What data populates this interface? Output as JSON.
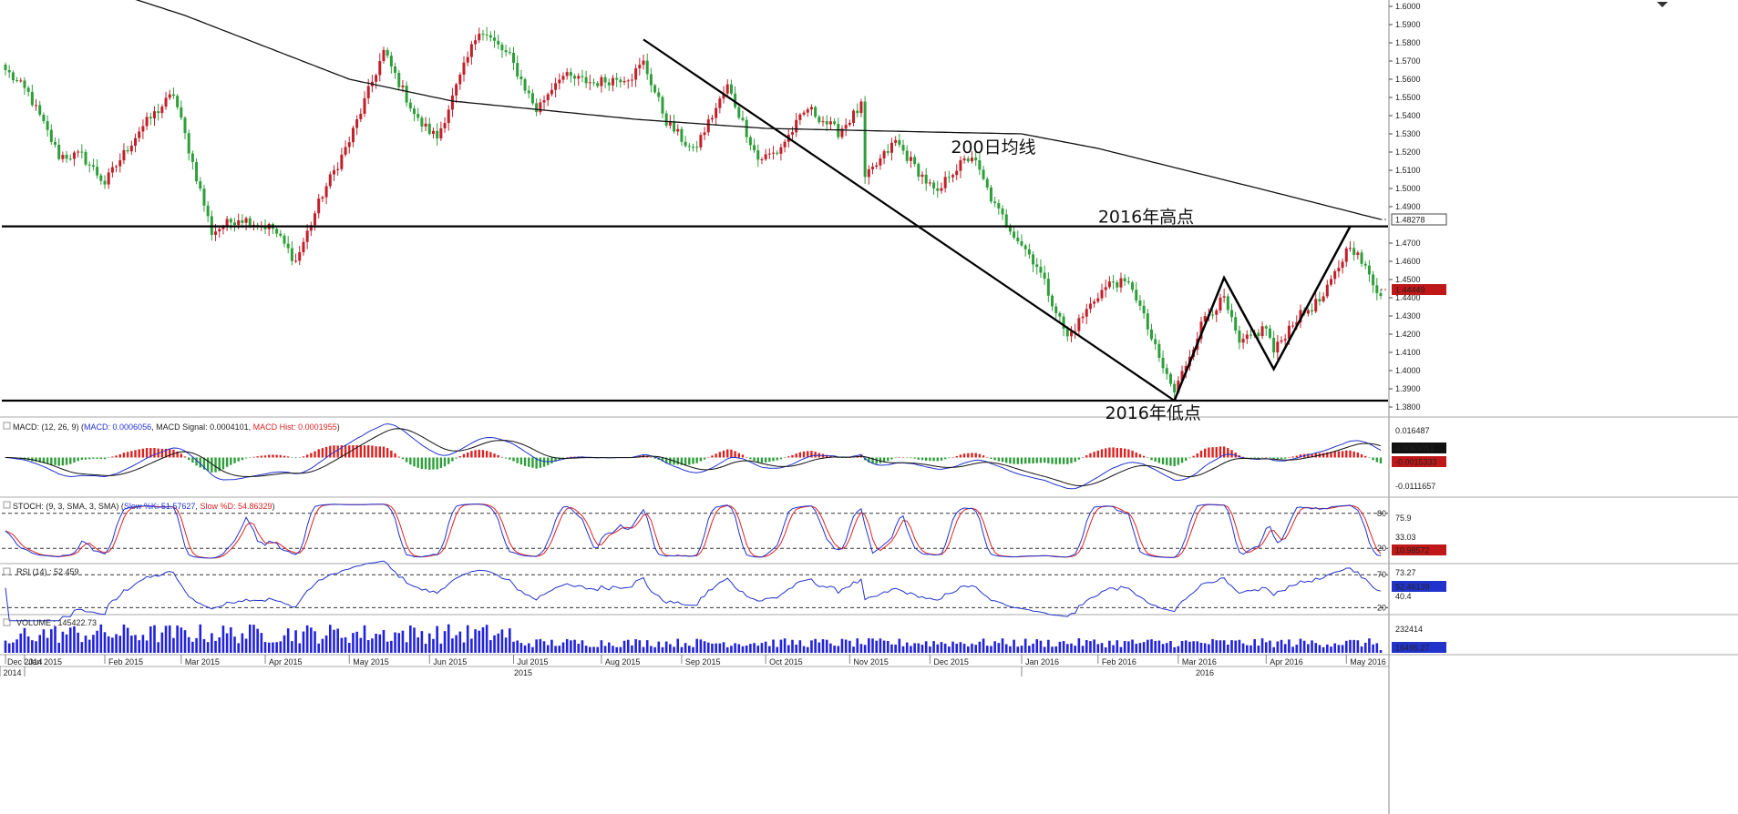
{
  "colors": {
    "up": "#c0202a",
    "down": "#2e9e3a",
    "ma": "#111111",
    "macd": "#2233cc",
    "signal": "#111111",
    "k": "#2233cc",
    "d": "#dd2222",
    "rsi": "#2233cc",
    "volume": "#2222dd",
    "badge_price": "#c01818",
    "badge_dark": "#111111",
    "badge_blue": "#2233cc"
  },
  "chart_data": {
    "type": "candlestick",
    "start_date": "2014-12-26",
    "interval": "1 trading day",
    "price_axis": {
      "ylim": [
        1.375,
        1.6035
      ],
      "ticks": [
        "1.3800",
        "1.3900",
        "1.4000",
        "1.4100",
        "1.4200",
        "1.4300",
        "1.4400",
        "1.4500",
        "1.4600",
        "1.4700",
        "1.4900",
        "1.5000",
        "1.5100",
        "1.5200",
        "1.5300",
        "1.5400",
        "1.5500",
        "1.5600",
        "1.5700",
        "1.5800",
        "1.5900",
        "1.6000"
      ]
    },
    "close_anchors": [
      {
        "date": "2014-12-26",
        "close": 1.565
      },
      {
        "date": "2015-01-05",
        "close": 1.552
      },
      {
        "date": "2015-01-15",
        "close": 1.518
      },
      {
        "date": "2015-01-23",
        "close": 1.518
      },
      {
        "date": "2015-02-02",
        "close": 1.503
      },
      {
        "date": "2015-02-13",
        "close": 1.532
      },
      {
        "date": "2015-02-26",
        "close": 1.552
      },
      {
        "date": "2015-03-12",
        "close": 1.476
      },
      {
        "date": "2015-03-23",
        "close": 1.484
      },
      {
        "date": "2015-04-03",
        "close": 1.478
      },
      {
        "date": "2015-04-13",
        "close": 1.46
      },
      {
        "date": "2015-04-22",
        "close": 1.497
      },
      {
        "date": "2015-05-01",
        "close": 1.526
      },
      {
        "date": "2015-05-14",
        "close": 1.575
      },
      {
        "date": "2015-05-27",
        "close": 1.537
      },
      {
        "date": "2015-06-03",
        "close": 1.528
      },
      {
        "date": "2015-06-18",
        "close": 1.588
      },
      {
        "date": "2015-06-30",
        "close": 1.572
      },
      {
        "date": "2015-07-09",
        "close": 1.543
      },
      {
        "date": "2015-07-17",
        "close": 1.562
      },
      {
        "date": "2015-07-30",
        "close": 1.558
      },
      {
        "date": "2015-08-13",
        "close": 1.562
      },
      {
        "date": "2015-08-18",
        "close": 1.569
      },
      {
        "date": "2015-08-26",
        "close": 1.537
      },
      {
        "date": "2015-09-04",
        "close": 1.52
      },
      {
        "date": "2015-09-17",
        "close": 1.556
      },
      {
        "date": "2015-09-29",
        "close": 1.516
      },
      {
        "date": "2015-10-06",
        "close": 1.52
      },
      {
        "date": "2015-10-16",
        "close": 1.544
      },
      {
        "date": "2015-10-28",
        "close": 1.531
      },
      {
        "date": "2015-11-05",
        "close": 1.545
      },
      {
        "date": "2015-11-06",
        "close": 1.505
      },
      {
        "date": "2015-11-18",
        "close": 1.526
      },
      {
        "date": "2015-11-25",
        "close": 1.512
      },
      {
        "date": "2015-12-03",
        "close": 1.496
      },
      {
        "date": "2015-12-08",
        "close": 1.508
      },
      {
        "date": "2015-12-16",
        "close": 1.518
      },
      {
        "date": "2015-12-24",
        "close": 1.49
      },
      {
        "date": "2016-01-08",
        "close": 1.458
      },
      {
        "date": "2016-01-20",
        "close": 1.418
      },
      {
        "date": "2016-02-01",
        "close": 1.442
      },
      {
        "date": "2016-02-05",
        "close": 1.449
      },
      {
        "date": "2016-02-12",
        "close": 1.446
      },
      {
        "date": "2016-02-23",
        "close": 1.406
      },
      {
        "date": "2016-02-29",
        "close": 1.388
      },
      {
        "date": "2016-03-10",
        "close": 1.43
      },
      {
        "date": "2016-03-17",
        "close": 1.439
      },
      {
        "date": "2016-03-23",
        "close": 1.414
      },
      {
        "date": "2016-04-01",
        "close": 1.424
      },
      {
        "date": "2016-04-05",
        "close": 1.41
      },
      {
        "date": "2016-04-12",
        "close": 1.427
      },
      {
        "date": "2016-04-22",
        "close": 1.44
      },
      {
        "date": "2016-05-03",
        "close": 1.47
      },
      {
        "date": "2016-05-13",
        "close": 1.441
      }
    ],
    "ma200_anchors": [
      {
        "date": "2014-12-26",
        "value": 1.627
      },
      {
        "date": "2015-03-03",
        "value": 1.595
      },
      {
        "date": "2015-05-01",
        "value": 1.56
      },
      {
        "date": "2015-06-09",
        "value": 1.548
      },
      {
        "date": "2015-08-14",
        "value": 1.538
      },
      {
        "date": "2015-10-01",
        "value": 1.533
      },
      {
        "date": "2015-11-02",
        "value": 1.532
      },
      {
        "date": "2015-12-01",
        "value": 1.531
      },
      {
        "date": "2016-01-04",
        "value": 1.53
      },
      {
        "date": "2016-02-01",
        "value": 1.522
      },
      {
        "date": "2016-03-01",
        "value": 1.511
      },
      {
        "date": "2016-04-01",
        "value": 1.499
      },
      {
        "date": "2016-05-13",
        "value": 1.483
      }
    ],
    "lines": {
      "high_2016": 1.4792,
      "low_2016": 1.3835,
      "trendline": [
        {
          "date": "2015-08-18",
          "value": 1.5818
        },
        {
          "date": "2016-02-29",
          "value": 1.3835
        }
      ],
      "zigzag": [
        {
          "date": "2016-02-29",
          "value": 1.3835
        },
        {
          "date": "2016-03-17",
          "value": 1.451
        },
        {
          "date": "2016-04-05",
          "value": 1.4008
        },
        {
          "date": "2016-05-03",
          "value": 1.4792
        }
      ]
    },
    "time_axis": {
      "months": [
        "Dec 2014",
        "Jan 2015",
        "Feb 2015",
        "Mar 2015",
        "Apr 2015",
        "May 2015",
        "Jun 2015",
        "Jul 2015",
        "Aug 2015",
        "Sep 2015",
        "Oct 2015",
        "Nov 2015",
        "Dec 2015",
        "Jan 2016",
        "Feb 2016",
        "Mar 2016",
        "Apr 2016",
        "May 2016"
      ],
      "month_starts": [
        "2014-12-26",
        "2015-01-02",
        "2015-02-02",
        "2015-03-02",
        "2015-04-01",
        "2015-05-01",
        "2015-06-01",
        "2015-07-01",
        "2015-08-03",
        "2015-09-01",
        "2015-10-01",
        "2015-11-02",
        "2015-12-01",
        "2016-01-04",
        "2016-02-01",
        "2016-03-01",
        "2016-04-01",
        "2016-05-02"
      ],
      "years": [
        "2014",
        "2015",
        "2016"
      ],
      "year_starts": [
        "2014-12-26",
        "2015-01-02",
        "2016-01-04"
      ]
    },
    "current": {
      "ma200": "1.48278",
      "price": "1.44449"
    },
    "panels": {
      "macd": {
        "params": "(12, 26, 9)",
        "macd_value": "0.0006056",
        "signal_value": "0.0004101",
        "hist_value": "0.0001955",
        "scale_top": "0.016487",
        "scale_bottom": "-0.0111657",
        "badge_1": "0.0063051",
        "badge_2": "-0.0015333"
      },
      "stoch": {
        "params": "(9, 3, SMA, 3, SMA)",
        "k_value": "51.57627",
        "d_value": "54.86329",
        "levels": [
          "80",
          "20"
        ],
        "ticks": [
          "75.9",
          "33.03"
        ],
        "badge": "10.98572"
      },
      "rsi": {
        "params": "(14)",
        "value": "52.459",
        "levels": [
          "70",
          "20"
        ],
        "ticks": [
          "73.27",
          "40.4"
        ],
        "badge": "52.46139"
      },
      "volume": {
        "value": "145422.73",
        "tick": "232414",
        "badge": "16495.27"
      }
    }
  },
  "annotations": {
    "ma200": "200日均线",
    "high_2016": "2016年高点",
    "low_2016": "2016年低点"
  },
  "labels": {
    "macd_name": "MACD",
    "macd_key": "MACD",
    "signal_key": "MACD Signal",
    "hist_key": "MACD Hist",
    "stoch_name": "STOCH",
    "k_key": "Slow %K",
    "d_key": "Slow %D",
    "rsi_name": "RSI",
    "volume_name": "VOLUME"
  }
}
